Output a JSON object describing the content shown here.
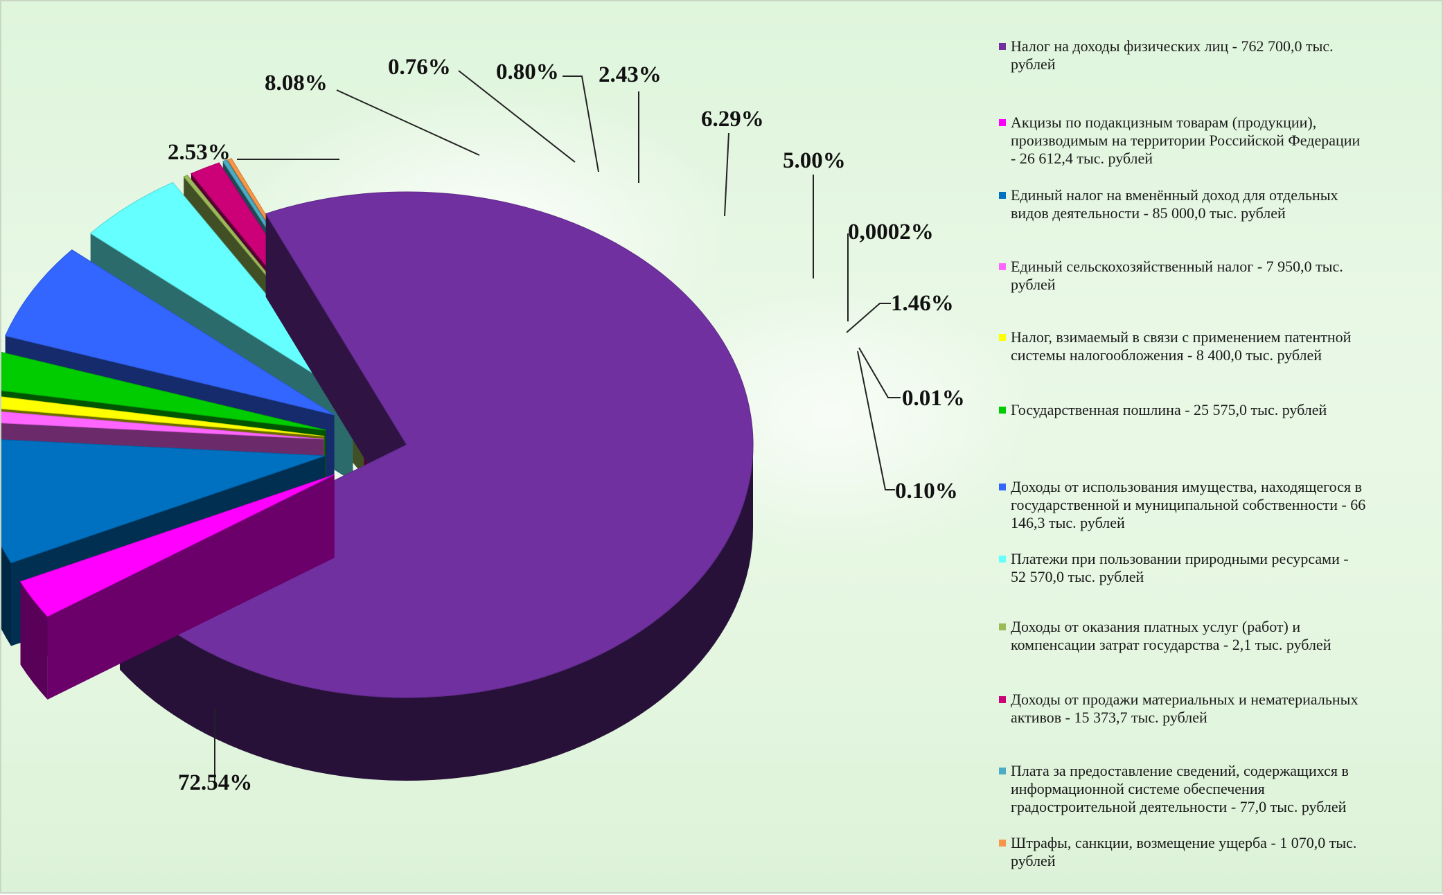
{
  "chart_data": {
    "type": "pie",
    "title": "",
    "slices": [
      {
        "label": "Налог на доходы физических лиц - 762 700,0 тыс. рублей",
        "value": 762700.0,
        "percent_label": "72.54%",
        "color": "#7030a0"
      },
      {
        "label": "Акцизы по подакцизным товарам (продукции), производимым на территории Российской Федерации - 26 612,4 тыс. рублей",
        "value": 26612.4,
        "percent_label": "2.53%",
        "color": "#ff00ff"
      },
      {
        "label": "Единый налог на вменённый доход для отдельных видов деятельности - 85 000,0 тыс. рублей",
        "value": 85000.0,
        "percent_label": "8.08%",
        "color": "#0070c0"
      },
      {
        "label": "Единый сельскохозяйственный налог - 7 950,0 тыс. рублей",
        "value": 7950.0,
        "percent_label": "0.76%",
        "color": "#ff66ff"
      },
      {
        "label": "Налог, взимаемый в связи с применением патентной системы налогообложения - 8 400,0 тыс. рублей",
        "value": 8400.0,
        "percent_label": "0.80%",
        "color": "#ffff00"
      },
      {
        "label": "Государственная пошлина - 25 575,0 тыс. рублей",
        "value": 25575.0,
        "percent_label": "2.43%",
        "color": "#00cc00"
      },
      {
        "label": "Доходы от использования имущества, находящегося в государственной и муниципальной собственности - 66 146,3 тыс. рублей",
        "value": 66146.3,
        "percent_label": "6.29%",
        "color": "#3366ff"
      },
      {
        "label": "Платежи при пользовании природными ресурсами - 52 570,0 тыс. рублей",
        "value": 52570.0,
        "percent_label": "5.00%",
        "color": "#66ffff"
      },
      {
        "label": "Доходы от оказания платных услуг (работ) и компенсации затрат государства - 2,1 тыс. рублей",
        "value": 2.1,
        "percent_label": "0,0002%",
        "color": "#9bbb59"
      },
      {
        "label": "Доходы от продажи материальных и нематериальных активов - 15 373,7 тыс. рублей",
        "value": 15373.7,
        "percent_label": "1.46%",
        "color": "#cc0077"
      },
      {
        "label": "Плата за предоставление сведений, содержащихся в информационной системе обеспечения градостроительной деятельности - 77,0 тыс. рублей",
        "value": 77.0,
        "percent_label": "0.01%",
        "color": "#4bacc6"
      },
      {
        "label": "Штрафы, санкции, возмещение ущерба - 1 070,0 тыс. рублей",
        "value": 1070.0,
        "percent_label": "0.10%",
        "color": "#f79646"
      }
    ],
    "legend": {
      "position": "right",
      "items": [
        [
          "Налог на доходы физических лиц - 762 700,0 тыс.",
          "рублей"
        ],
        [
          "Акцизы по подакцизным товарам (продукции),",
          "производимым на территории Российской Федерации",
          "- 26 612,4 тыс. рублей"
        ],
        [
          "Единый налог на вменённый доход для отдельных",
          "видов деятельности - 85 000,0 тыс. рублей"
        ],
        [
          "Единый сельскохозяйственный налог - 7 950,0 тыс.",
          "рублей"
        ],
        [
          "Налог, взимаемый в связи с применением патентной",
          "системы налогообложения - 8 400,0 тыс. рублей"
        ],
        [
          "Государственная пошлина - 25 575,0 тыс. рублей"
        ],
        [
          "Доходы от использования имущества, находящегося в",
          "государственной и муниципальной собственности - 66",
          "146,3 тыс. рублей"
        ],
        [
          "Платежи при пользовании природными ресурсами -",
          "52 570,0 тыс. рублей"
        ],
        [
          "Доходы от оказания платных услуг (работ) и",
          "компенсации затрат государства - 2,1 тыс. рублей"
        ],
        [
          "Доходы от продажи материальных и нематериальных",
          "активов - 15 373,7 тыс. рублей"
        ],
        [
          "Плата за предоставление сведений, содержащихся в",
          "информационной системе обеспечения",
          "градостроительной деятельности - 77,0 тыс. рублей"
        ],
        [
          "Штрафы, санкции, возмещение ущерба - 1 070,0 тыс.",
          "рублей"
        ]
      ]
    }
  }
}
